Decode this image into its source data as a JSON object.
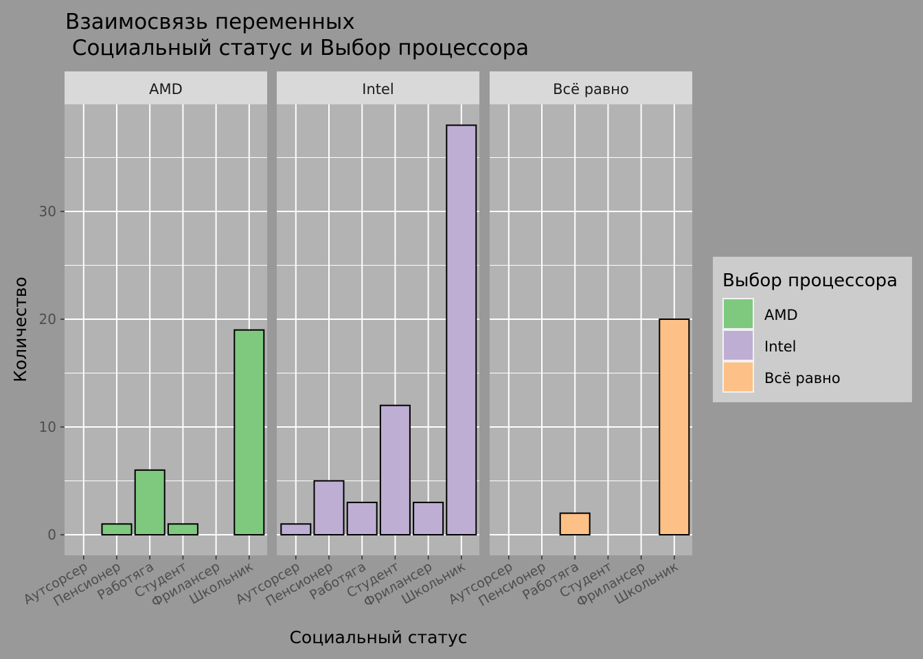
{
  "chart_data": {
    "type": "bar",
    "title_line1": "Взаимосвязь переменных",
    "title_line2": " Социальный статус и Выбор процессора",
    "xlabel": "Социальный статус",
    "ylabel": "Количество",
    "ylim": [
      -1.8,
      40
    ],
    "yticks": [
      0,
      10,
      20,
      30
    ],
    "categories": [
      "Аутсорсер",
      "Пенсионер",
      "Работяга",
      "Студент",
      "Фрилансер",
      "Школьник"
    ],
    "facets": [
      {
        "name": "AMD",
        "color": "#7FC97F",
        "values": [
          0,
          1,
          6,
          1,
          0,
          19
        ]
      },
      {
        "name": "Intel",
        "color": "#BEAED4",
        "values": [
          1,
          5,
          3,
          12,
          3,
          38
        ]
      },
      {
        "name": "Всё равно",
        "color": "#FDC086",
        "values": [
          0,
          0,
          2,
          0,
          0,
          20
        ]
      }
    ],
    "legend": {
      "title": "Выбор процессора",
      "entries": [
        "AMD",
        "Intel",
        "Всё равно"
      ],
      "position": "right"
    },
    "grid": true
  },
  "colors": {
    "plot_background": "#999999",
    "panel_background": "#B3B3B3",
    "strip_background": "#D9D9D9",
    "legend_background": "#CCCCCC",
    "grid": "#FFFFFF"
  }
}
